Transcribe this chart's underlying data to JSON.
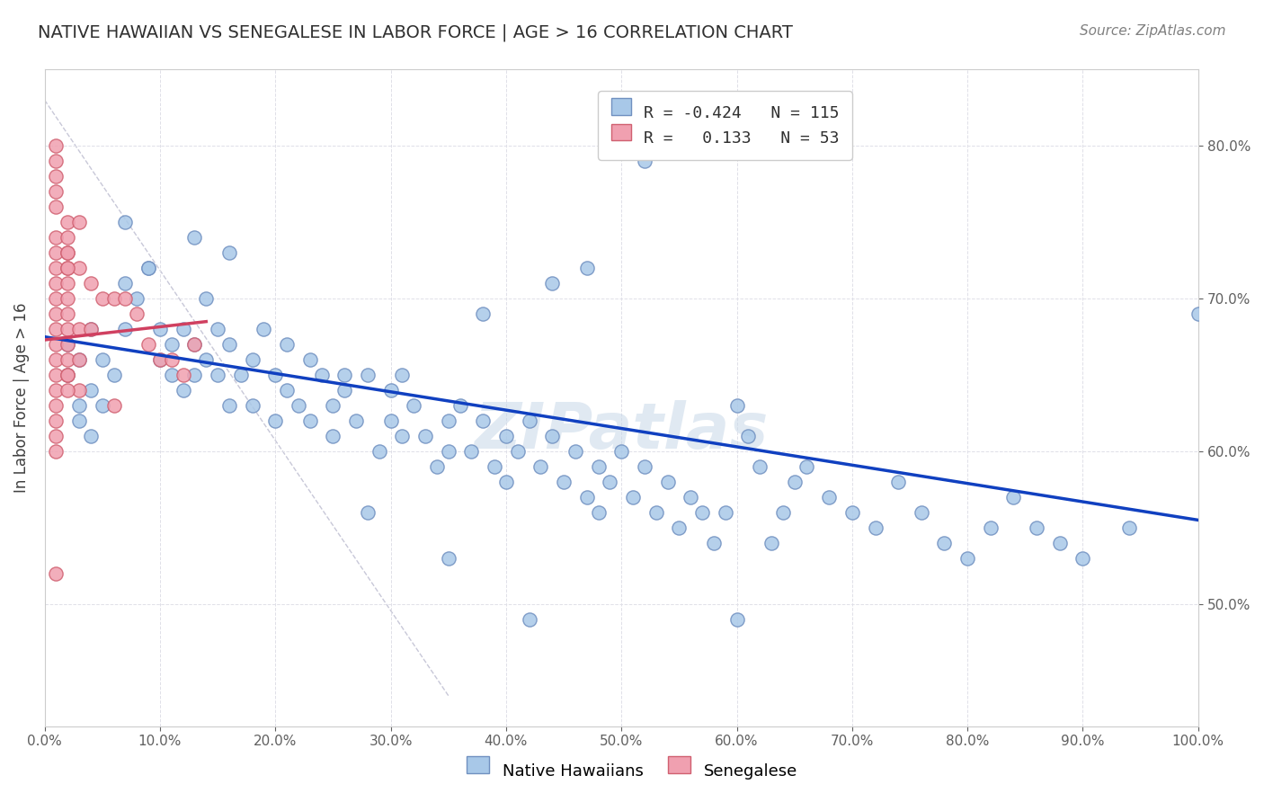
{
  "title": "NATIVE HAWAIIAN VS SENEGALESE IN LABOR FORCE | AGE > 16 CORRELATION CHART",
  "source": "Source: ZipAtlas.com",
  "xlabel": "",
  "ylabel": "In Labor Force | Age > 16",
  "watermark": "ZIPatlas",
  "legend_blue": {
    "R": "-0.424",
    "N": "115",
    "label": "Native Hawaiians"
  },
  "legend_pink": {
    "R": "0.133",
    "N": "53",
    "label": "Senegalese"
  },
  "blue_color": "#a8c8e8",
  "pink_color": "#f0a0b0",
  "blue_edge": "#7090c0",
  "pink_edge": "#d06070",
  "trendline_blue": "#1040c0",
  "trendline_pink": "#d04060",
  "diag_line": "#c8c8d8",
  "grid_color": "#e0e0e8",
  "background": "#ffffff",
  "title_color": "#303030",
  "source_color": "#808080",
  "axis_label_color": "#404040",
  "tick_color": "#606060",
  "xlim": [
    0.0,
    1.0
  ],
  "ylim": [
    0.42,
    0.85
  ],
  "xticks": [
    0.0,
    0.1,
    0.2,
    0.3,
    0.4,
    0.5,
    0.6,
    0.7,
    0.8,
    0.9,
    1.0
  ],
  "yticks": [
    0.5,
    0.6,
    0.7,
    0.8
  ],
  "blue_x": [
    0.02,
    0.02,
    0.03,
    0.03,
    0.03,
    0.04,
    0.04,
    0.04,
    0.05,
    0.05,
    0.06,
    0.07,
    0.07,
    0.08,
    0.09,
    0.1,
    0.1,
    0.11,
    0.11,
    0.12,
    0.12,
    0.13,
    0.13,
    0.14,
    0.14,
    0.15,
    0.15,
    0.16,
    0.16,
    0.17,
    0.18,
    0.18,
    0.19,
    0.2,
    0.2,
    0.21,
    0.22,
    0.23,
    0.23,
    0.24,
    0.25,
    0.25,
    0.26,
    0.27,
    0.28,
    0.29,
    0.3,
    0.3,
    0.31,
    0.32,
    0.33,
    0.34,
    0.35,
    0.35,
    0.36,
    0.37,
    0.38,
    0.39,
    0.4,
    0.4,
    0.41,
    0.42,
    0.43,
    0.44,
    0.45,
    0.46,
    0.47,
    0.48,
    0.48,
    0.49,
    0.5,
    0.51,
    0.52,
    0.53,
    0.54,
    0.55,
    0.56,
    0.57,
    0.58,
    0.59,
    0.6,
    0.61,
    0.62,
    0.63,
    0.64,
    0.65,
    0.66,
    0.68,
    0.7,
    0.72,
    0.74,
    0.76,
    0.78,
    0.8,
    0.82,
    0.84,
    0.86,
    0.88,
    0.9,
    0.94,
    0.47,
    0.52,
    0.35,
    0.28,
    0.38,
    0.13,
    0.16,
    0.07,
    0.09,
    0.21,
    0.31,
    0.26,
    0.44,
    0.42,
    0.6,
    1.0
  ],
  "blue_y": [
    0.67,
    0.65,
    0.63,
    0.66,
    0.62,
    0.68,
    0.64,
    0.61,
    0.66,
    0.63,
    0.65,
    0.71,
    0.68,
    0.7,
    0.72,
    0.68,
    0.66,
    0.67,
    0.65,
    0.68,
    0.64,
    0.67,
    0.65,
    0.7,
    0.66,
    0.68,
    0.65,
    0.67,
    0.63,
    0.65,
    0.66,
    0.63,
    0.68,
    0.65,
    0.62,
    0.64,
    0.63,
    0.66,
    0.62,
    0.65,
    0.63,
    0.61,
    0.64,
    0.62,
    0.65,
    0.6,
    0.62,
    0.64,
    0.61,
    0.63,
    0.61,
    0.59,
    0.62,
    0.6,
    0.63,
    0.6,
    0.62,
    0.59,
    0.61,
    0.58,
    0.6,
    0.62,
    0.59,
    0.61,
    0.58,
    0.6,
    0.57,
    0.59,
    0.56,
    0.58,
    0.6,
    0.57,
    0.59,
    0.56,
    0.58,
    0.55,
    0.57,
    0.56,
    0.54,
    0.56,
    0.63,
    0.61,
    0.59,
    0.54,
    0.56,
    0.58,
    0.59,
    0.57,
    0.56,
    0.55,
    0.58,
    0.56,
    0.54,
    0.53,
    0.55,
    0.57,
    0.55,
    0.54,
    0.53,
    0.55,
    0.72,
    0.79,
    0.53,
    0.56,
    0.69,
    0.74,
    0.73,
    0.75,
    0.72,
    0.67,
    0.65,
    0.65,
    0.71,
    0.49,
    0.49,
    0.69
  ],
  "pink_x": [
    0.01,
    0.01,
    0.01,
    0.01,
    0.01,
    0.01,
    0.01,
    0.01,
    0.01,
    0.01,
    0.01,
    0.01,
    0.01,
    0.01,
    0.01,
    0.02,
    0.02,
    0.02,
    0.02,
    0.02,
    0.02,
    0.02,
    0.02,
    0.02,
    0.02,
    0.03,
    0.03,
    0.04,
    0.04,
    0.05,
    0.06,
    0.07,
    0.08,
    0.09,
    0.1,
    0.11,
    0.12,
    0.13,
    0.03,
    0.02,
    0.01,
    0.01,
    0.02,
    0.02,
    0.03,
    0.02,
    0.01,
    0.01,
    0.01,
    0.02,
    0.01,
    0.03,
    0.06
  ],
  "pink_y": [
    0.74,
    0.73,
    0.72,
    0.71,
    0.7,
    0.69,
    0.68,
    0.67,
    0.66,
    0.65,
    0.64,
    0.63,
    0.62,
    0.61,
    0.6,
    0.74,
    0.73,
    0.72,
    0.71,
    0.7,
    0.69,
    0.68,
    0.67,
    0.66,
    0.65,
    0.72,
    0.68,
    0.71,
    0.68,
    0.7,
    0.7,
    0.7,
    0.69,
    0.67,
    0.66,
    0.66,
    0.65,
    0.67,
    0.64,
    0.72,
    0.76,
    0.77,
    0.75,
    0.65,
    0.75,
    0.73,
    0.78,
    0.79,
    0.8,
    0.64,
    0.52,
    0.66,
    0.63
  ],
  "blue_trend_x": [
    0.0,
    1.0
  ],
  "blue_trend_y": [
    0.675,
    0.555
  ],
  "pink_trend_x": [
    0.0,
    0.14
  ],
  "pink_trend_y": [
    0.673,
    0.685
  ],
  "marker_size": 120,
  "marker_lw": 1.0,
  "trend_lw": 2.5
}
